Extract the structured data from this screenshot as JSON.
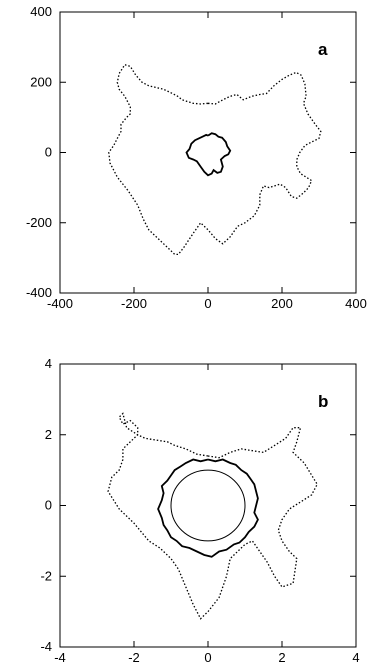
{
  "chart_data": [
    {
      "type": "line",
      "panel_label": "a",
      "xlim": [
        -400,
        400
      ],
      "ylim": [
        -400,
        400
      ],
      "xticks": [
        -400,
        -200,
        0,
        200,
        400
      ],
      "yticks": [
        -400,
        -200,
        0,
        200,
        400
      ],
      "xtick_labels": [
        "-400",
        "-200",
        "0",
        "200",
        "400"
      ],
      "ytick_labels": [
        "-400",
        "-200",
        "0",
        "200",
        "400"
      ],
      "grid": false,
      "series": [
        {
          "style": "dotted",
          "color": "#000000",
          "x": [
            0,
            20,
            40,
            60,
            78,
            95,
            118,
            140,
            158,
            178,
            200,
            220,
            238,
            252,
            262,
            265,
            258,
            270,
            290,
            305,
            300,
            280,
            262,
            248,
            240,
            240,
            250,
            265,
            280,
            272,
            258,
            240,
            225,
            210,
            195,
            180,
            165,
            150,
            140,
            140,
            125,
            100,
            80,
            60,
            40,
            20,
            0,
            -20,
            -40,
            -65,
            -80,
            -90,
            -100,
            -120,
            -140,
            -160,
            -175,
            -190,
            -215,
            -245,
            -265,
            -268,
            -255,
            -245,
            -235,
            -235,
            -220,
            -210,
            -210,
            -225,
            -240,
            -245,
            -240,
            -225,
            -210,
            -195,
            -178,
            -160,
            -140,
            -120,
            -100,
            -82,
            -70,
            -55,
            -40,
            -20,
            0
          ],
          "y": [
            140,
            138,
            150,
            160,
            165,
            150,
            160,
            165,
            168,
            190,
            208,
            220,
            228,
            220,
            195,
            160,
            140,
            110,
            80,
            60,
            40,
            30,
            20,
            0,
            -20,
            -40,
            -60,
            -70,
            -80,
            -100,
            -115,
            -130,
            -125,
            -100,
            -90,
            -95,
            -100,
            -95,
            -120,
            -150,
            -180,
            -200,
            -210,
            -240,
            -260,
            -245,
            -220,
            -200,
            -230,
            -270,
            -290,
            -290,
            -280,
            -260,
            -240,
            -220,
            -190,
            -150,
            -110,
            -70,
            -30,
            0,
            20,
            40,
            60,
            80,
            100,
            110,
            130,
            160,
            180,
            200,
            225,
            250,
            245,
            220,
            200,
            190,
            185,
            180,
            170,
            160,
            150,
            145,
            140,
            138,
            140
          ]
        },
        {
          "style": "solid",
          "color": "#000000",
          "x": [
            0,
            10,
            20,
            28,
            38,
            48,
            52,
            60,
            55,
            45,
            35,
            40,
            35,
            25,
            15,
            10,
            0,
            -10,
            -20,
            -30,
            -40,
            -52,
            -58,
            -50,
            -45,
            -35,
            -25,
            -15,
            -5,
            0
          ],
          "y": [
            48,
            55,
            52,
            45,
            42,
            30,
            18,
            5,
            -5,
            -10,
            -20,
            -40,
            -55,
            -58,
            -50,
            -60,
            -65,
            -55,
            -40,
            -25,
            -20,
            -15,
            0,
            10,
            25,
            35,
            40,
            45,
            50,
            48
          ]
        }
      ]
    },
    {
      "type": "line",
      "panel_label": "b",
      "xlim": [
        -4,
        4
      ],
      "ylim": [
        -4,
        4
      ],
      "xticks": [
        -4,
        -2,
        0,
        2,
        4
      ],
      "yticks": [
        -4,
        -2,
        0,
        2,
        4
      ],
      "xtick_labels": [
        "-4",
        "-2",
        "0",
        "2",
        "4"
      ],
      "ytick_labels": [
        "-4",
        "-2",
        "0",
        "2",
        "4"
      ],
      "grid": false,
      "series": [
        {
          "style": "dotted",
          "color": "#000000",
          "x": [
            0,
            0.3,
            0.6,
            0.9,
            1.2,
            1.5,
            1.8,
            2.1,
            2.3,
            2.5,
            2.4,
            2.3,
            2.6,
            2.95,
            2.8,
            2.5,
            2.2,
            2.0,
            1.9,
            2.0,
            2.2,
            2.4,
            2.3,
            2.0,
            1.8,
            1.6,
            1.4,
            1.2,
            1.0,
            0.8,
            0.6,
            0.5,
            0.3,
            0.0,
            -0.2,
            -0.4,
            -0.6,
            -0.8,
            -1.0,
            -1.3,
            -1.6,
            -2.0,
            -2.4,
            -2.7,
            -2.6,
            -2.4,
            -2.3,
            -2.3,
            -2.1,
            -1.9,
            -1.9,
            -2.1,
            -2.3,
            -2.4,
            -2.3,
            -2.2,
            -1.9,
            -1.7,
            -1.4,
            -1.1,
            -0.9,
            -0.6,
            -0.3,
            0
          ],
          "y": [
            1.4,
            1.35,
            1.5,
            1.6,
            1.55,
            1.5,
            1.7,
            1.9,
            2.2,
            2.2,
            1.8,
            1.5,
            1.2,
            0.6,
            0.3,
            0.1,
            -0.1,
            -0.4,
            -0.7,
            -1.0,
            -1.3,
            -1.5,
            -2.2,
            -2.3,
            -2.0,
            -1.6,
            -1.3,
            -1.0,
            -1.1,
            -1.3,
            -1.5,
            -2.0,
            -2.6,
            -3.0,
            -3.2,
            -2.8,
            -2.3,
            -1.8,
            -1.5,
            -1.2,
            -1.0,
            -0.5,
            -0.1,
            0.4,
            0.8,
            1.0,
            1.3,
            1.6,
            1.8,
            2.0,
            2.2,
            2.4,
            2.3,
            2.5,
            2.6,
            2.2,
            2.0,
            1.9,
            1.85,
            1.8,
            1.7,
            1.6,
            1.45,
            1.4
          ]
        },
        {
          "style": "solid",
          "color": "#000000",
          "x": [
            0,
            0.2,
            0.4,
            0.6,
            0.75,
            0.9,
            1.05,
            1.15,
            1.25,
            1.3,
            1.35,
            1.3,
            1.25,
            1.35,
            1.25,
            1.1,
            1.0,
            0.85,
            0.7,
            0.5,
            0.3,
            0.1,
            -0.1,
            -0.3,
            -0.5,
            -0.7,
            -0.85,
            -1.0,
            -1.1,
            -1.2,
            -1.25,
            -1.35,
            -1.25,
            -1.2,
            -1.25,
            -1.1,
            -1.0,
            -0.9,
            -0.75,
            -0.6,
            -0.4,
            -0.2,
            0
          ],
          "y": [
            1.3,
            1.25,
            1.3,
            1.2,
            1.15,
            1.0,
            0.9,
            0.75,
            0.6,
            0.4,
            0.2,
            0.0,
            -0.2,
            -0.4,
            -0.6,
            -0.75,
            -0.9,
            -1.05,
            -1.1,
            -1.25,
            -1.3,
            -1.45,
            -1.4,
            -1.3,
            -1.2,
            -1.15,
            -1.0,
            -0.9,
            -0.7,
            -0.55,
            -0.35,
            -0.1,
            0.15,
            0.35,
            0.55,
            0.7,
            0.85,
            1.0,
            1.1,
            1.2,
            1.3,
            1.25,
            1.3
          ]
        },
        {
          "style": "circle",
          "color": "#000000",
          "cx": 0,
          "cy": 0,
          "r": 1.0
        }
      ]
    }
  ]
}
